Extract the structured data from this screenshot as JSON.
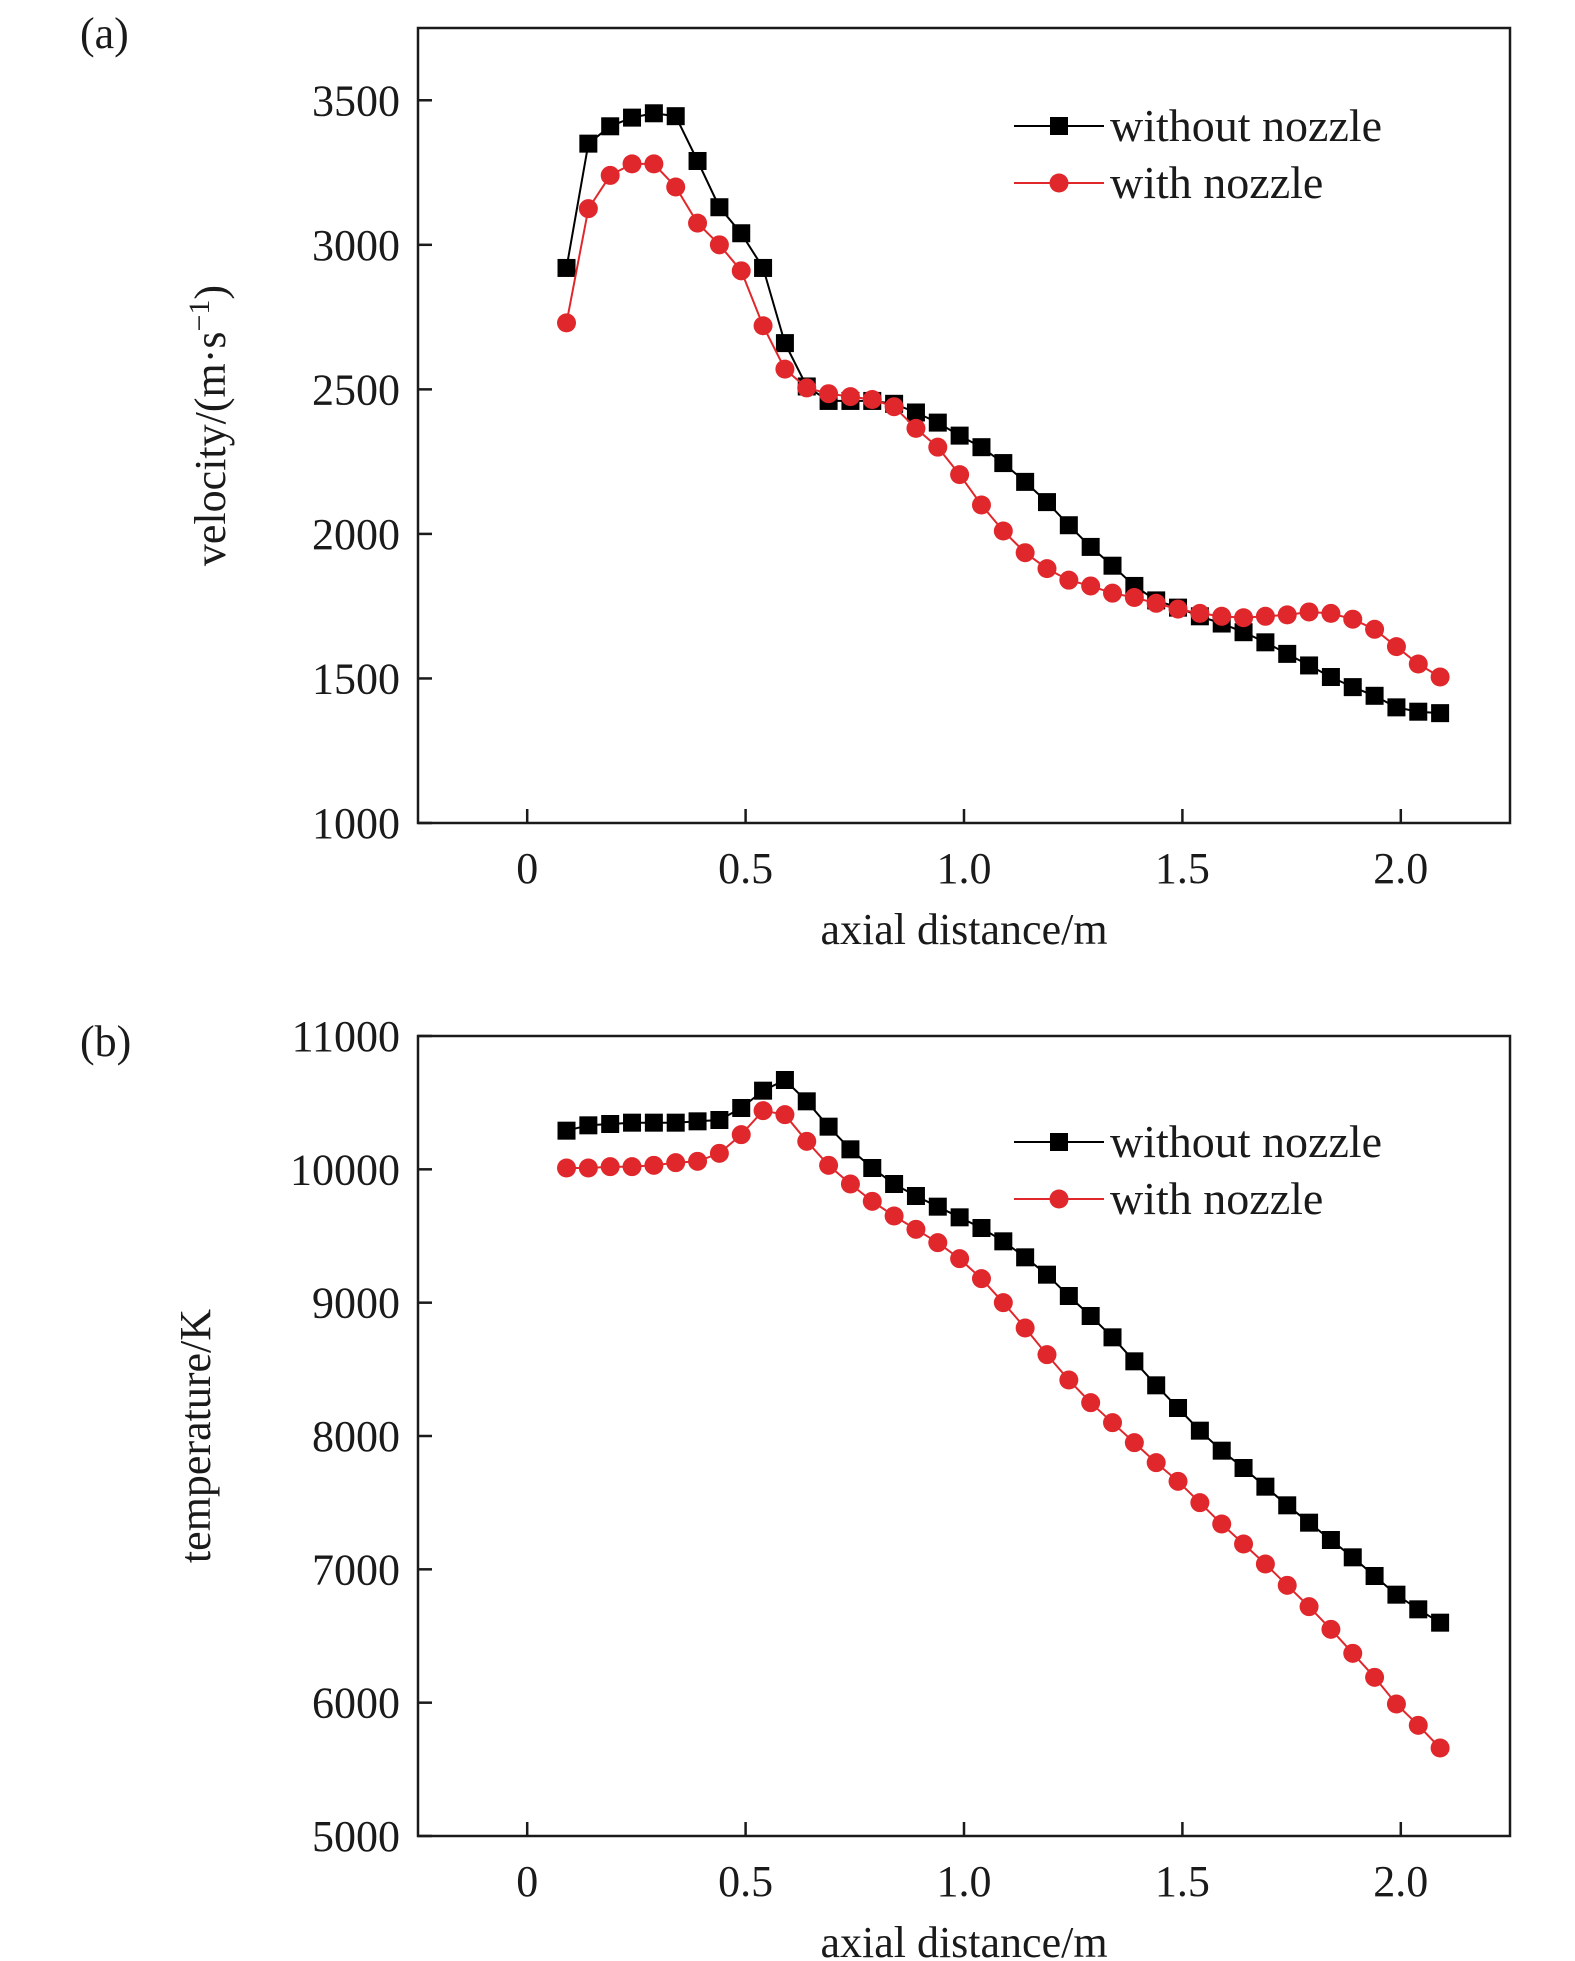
{
  "chart_data": [
    {
      "type": "line",
      "panel_label": "(a)",
      "xlabel": "axial distance/m",
      "ylabel": "velocity/(m·s",
      "ylabel_sup": "−1",
      "ylabel_close": ")",
      "xlim": [
        -0.25,
        2.25
      ],
      "ylim": [
        1000,
        3750
      ],
      "xticks": [
        0,
        0.5,
        1.0,
        1.5,
        2.0
      ],
      "xtick_labels": [
        "0",
        "0.5",
        "1.0",
        "1.5",
        "2.0"
      ],
      "yticks": [
        1000,
        1500,
        2000,
        2500,
        3000,
        3500
      ],
      "ytick_labels": [
        "1000",
        "1500",
        "2000",
        "2500",
        "3000",
        "3500"
      ],
      "grid": false,
      "legend_position": "top-right",
      "x": [
        0.09,
        0.14,
        0.19,
        0.24,
        0.29,
        0.34,
        0.39,
        0.44,
        0.49,
        0.54,
        0.59,
        0.64,
        0.69,
        0.74,
        0.79,
        0.84,
        0.89,
        0.94,
        0.99,
        1.04,
        1.09,
        1.14,
        1.19,
        1.24,
        1.29,
        1.34,
        1.39,
        1.44,
        1.49,
        1.54,
        1.59,
        1.64,
        1.69,
        1.74,
        1.79,
        1.84,
        1.89,
        1.94,
        1.99,
        2.04,
        2.09
      ],
      "series": [
        {
          "name": "without nozzle",
          "color": "#000000",
          "marker": "square",
          "values": [
            2920,
            3350,
            3410,
            3440,
            3455,
            3445,
            3290,
            3130,
            3040,
            2920,
            2660,
            2510,
            2460,
            2460,
            2460,
            2450,
            2420,
            2385,
            2340,
            2300,
            2245,
            2180,
            2110,
            2030,
            1955,
            1890,
            1820,
            1770,
            1745,
            1715,
            1690,
            1660,
            1625,
            1585,
            1545,
            1505,
            1470,
            1440,
            1400,
            1385,
            1380
          ]
        },
        {
          "name": "with nozzle",
          "color": "#e0282c",
          "marker": "circle",
          "values": [
            2730,
            3125,
            3240,
            3280,
            3280,
            3200,
            3075,
            3000,
            2910,
            2720,
            2570,
            2505,
            2485,
            2475,
            2465,
            2440,
            2365,
            2300,
            2205,
            2100,
            2010,
            1935,
            1880,
            1840,
            1820,
            1795,
            1780,
            1760,
            1740,
            1725,
            1715,
            1710,
            1715,
            1720,
            1730,
            1725,
            1705,
            1670,
            1610,
            1550,
            1505
          ]
        }
      ]
    },
    {
      "type": "line",
      "panel_label": "(b)",
      "xlabel": "axial distance/m",
      "ylabel": "temperature/K",
      "xlim": [
        -0.25,
        2.25
      ],
      "ylim": [
        5000,
        11000
      ],
      "xticks": [
        0,
        0.5,
        1.0,
        1.5,
        2.0
      ],
      "xtick_labels": [
        "0",
        "0.5",
        "1.0",
        "1.5",
        "2.0"
      ],
      "yticks": [
        5000,
        6000,
        7000,
        8000,
        9000,
        10000,
        11000
      ],
      "ytick_labels": [
        "5000",
        "6000",
        "7000",
        "8000",
        "9000",
        "10000",
        "11000"
      ],
      "grid": false,
      "legend_position": "top-right",
      "x": [
        0.09,
        0.14,
        0.19,
        0.24,
        0.29,
        0.34,
        0.39,
        0.44,
        0.49,
        0.54,
        0.59,
        0.64,
        0.69,
        0.74,
        0.79,
        0.84,
        0.89,
        0.94,
        0.99,
        1.04,
        1.09,
        1.14,
        1.19,
        1.24,
        1.29,
        1.34,
        1.39,
        1.44,
        1.49,
        1.54,
        1.59,
        1.64,
        1.69,
        1.74,
        1.79,
        1.84,
        1.89,
        1.94,
        1.99,
        2.04,
        2.09
      ],
      "series": [
        {
          "name": "without nozzle",
          "color": "#000000",
          "marker": "square",
          "values": [
            10290,
            10330,
            10340,
            10350,
            10350,
            10350,
            10360,
            10370,
            10460,
            10590,
            10670,
            10510,
            10320,
            10150,
            10010,
            9890,
            9800,
            9720,
            9640,
            9560,
            9460,
            9340,
            9210,
            9050,
            8900,
            8740,
            8560,
            8380,
            8210,
            8040,
            7890,
            7760,
            7620,
            7480,
            7350,
            7220,
            7090,
            6950,
            6810,
            6700,
            6600
          ]
        },
        {
          "name": "with nozzle",
          "color": "#e0282c",
          "marker": "circle",
          "values": [
            10010,
            10010,
            10020,
            10020,
            10030,
            10050,
            10060,
            10120,
            10260,
            10440,
            10410,
            10210,
            10030,
            9890,
            9760,
            9650,
            9550,
            9450,
            9330,
            9180,
            9000,
            8810,
            8610,
            8420,
            8250,
            8100,
            7950,
            7800,
            7660,
            7500,
            7340,
            7190,
            7040,
            6880,
            6720,
            6550,
            6370,
            6190,
            5990,
            5830,
            5660
          ]
        }
      ]
    }
  ]
}
